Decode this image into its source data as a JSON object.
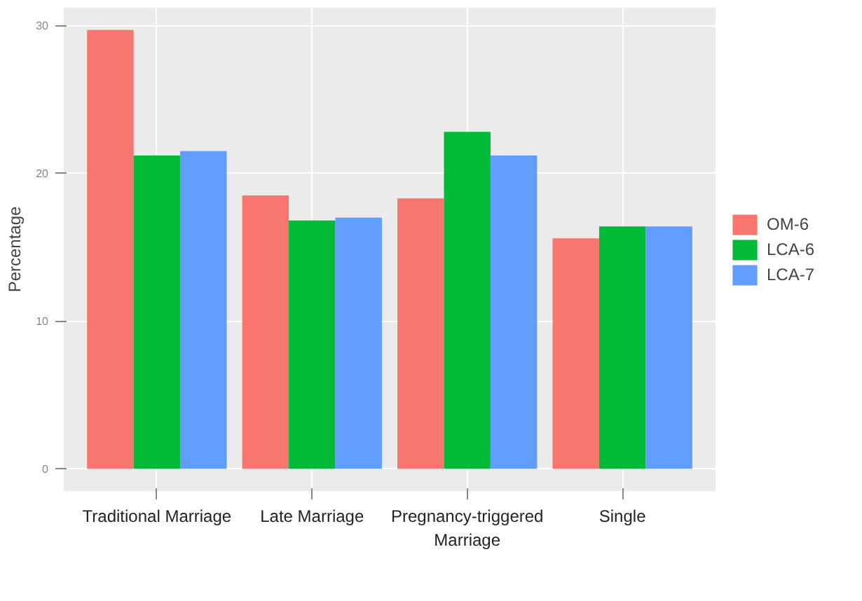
{
  "chart_data": {
    "type": "bar",
    "ylabel": "Percentage",
    "categories": [
      "Traditional Marriage",
      "Late Marriage",
      "Pregnancy-triggered\nMarriage",
      "Single"
    ],
    "series": [
      {
        "name": "OM-6",
        "color": "#f8766d",
        "values": [
          29.7,
          18.5,
          18.3,
          15.6
        ]
      },
      {
        "name": "LCA-6",
        "color": "#00ba38",
        "values": [
          21.2,
          16.8,
          22.8,
          16.4
        ]
      },
      {
        "name": "LCA-7",
        "color": "#619cff",
        "values": [
          21.5,
          17.0,
          21.2,
          16.4
        ]
      }
    ],
    "ylim": [
      -1.5,
      31.2
    ],
    "yticks": [
      0,
      10,
      20,
      30
    ],
    "grid": true,
    "legend": "right"
  }
}
